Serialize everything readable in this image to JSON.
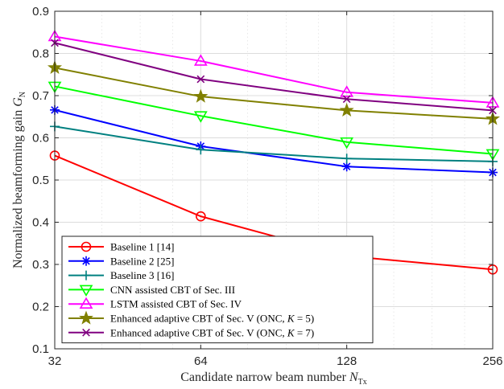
{
  "chart_data": {
    "type": "line",
    "x_scale": "log2",
    "x": [
      32,
      64,
      128,
      256
    ],
    "xticks": [
      "32",
      "64",
      "128",
      "256"
    ],
    "yticks": [
      "0.1",
      "0.2",
      "0.3",
      "0.4",
      "0.5",
      "0.6",
      "0.7",
      "0.8",
      "0.9"
    ],
    "xlim": [
      32,
      256
    ],
    "ylim": [
      0.1,
      0.9
    ],
    "grid": true,
    "legend_position": "bottom-left",
    "xlabel": {
      "text": "Candidate narrow beam number ",
      "symbol": "N",
      "sub": "Tx"
    },
    "ylabel": {
      "text": "Normalized beamforming gain ",
      "symbol": "G",
      "sub": "N"
    },
    "series": [
      {
        "name": "Baseline 1 [14]",
        "color": "#ff0000",
        "marker": "circle",
        "values": [
          0.558,
          0.414,
          0.32,
          0.288
        ]
      },
      {
        "name": "Baseline 2 [25]",
        "color": "#0000ff",
        "marker": "asterisk",
        "values": [
          0.666,
          0.58,
          0.532,
          0.518
        ]
      },
      {
        "name": "Baseline 3 [16]",
        "color": "#008080",
        "marker": "plus",
        "values": [
          0.627,
          0.572,
          0.551,
          0.544
        ]
      },
      {
        "name": "CNN assisted CBT of Sec. III",
        "color": "#00ff00",
        "marker": "triangle-down",
        "values": [
          0.722,
          0.652,
          0.59,
          0.562
        ]
      },
      {
        "name": "LSTM assisted CBT of Sec. IV",
        "color": "#ff00ff",
        "marker": "triangle-up",
        "values": [
          0.84,
          0.782,
          0.708,
          0.683
        ]
      },
      {
        "name_prefix": "Enhanced adaptive CBT of Sec. V (ONC, ",
        "name_var": "K",
        "name_suffix": " = 5)",
        "color": "#808000",
        "marker": "pentagram",
        "values": [
          0.766,
          0.698,
          0.665,
          0.645
        ]
      },
      {
        "name_prefix": "Enhanced adaptive CBT of Sec. V (ONC, ",
        "name_var": "K",
        "name_suffix": " = 7)",
        "color": "#800080",
        "marker": "x",
        "values": [
          0.825,
          0.739,
          0.692,
          0.665
        ]
      }
    ]
  }
}
